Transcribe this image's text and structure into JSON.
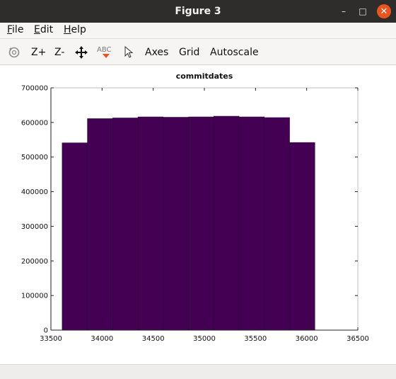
{
  "window": {
    "title": "Figure 3",
    "minimize_glyph": "–",
    "maximize_glyph": "□",
    "close_glyph": "✕"
  },
  "menu": {
    "items": [
      {
        "mnemonic": "F",
        "rest": "ile"
      },
      {
        "mnemonic": "E",
        "rest": "dit"
      },
      {
        "mnemonic": "H",
        "rest": "elp"
      }
    ]
  },
  "toolbar": {
    "rotate_icon": "rotate-icon",
    "zoom_in_label": "Z+",
    "zoom_out_label": "Z-",
    "pan_icon": "pan-icon",
    "text_icon_label": "ABC",
    "select_icon": "select-pointer-icon",
    "axes_label": "Axes",
    "grid_label": "Grid",
    "autoscale_label": "Autoscale"
  },
  "chart_data": {
    "type": "bar",
    "title": "commitdates",
    "xlabel": "",
    "ylabel": "",
    "bar_color": "#440154",
    "bin_edges": [
      33610,
      33857,
      34104,
      34351,
      34598,
      34845,
      35092,
      35339,
      35586,
      35833,
      36080
    ],
    "values": [
      541000,
      611000,
      613000,
      616000,
      615000,
      616000,
      618000,
      616000,
      614000,
      542000
    ],
    "xlim": [
      33500,
      36500
    ],
    "ylim": [
      0,
      700000
    ],
    "xticks": [
      33500,
      34000,
      34500,
      35000,
      35500,
      36000,
      36500
    ],
    "yticks": [
      0,
      100000,
      200000,
      300000,
      400000,
      500000,
      600000,
      700000
    ],
    "grid": false
  }
}
